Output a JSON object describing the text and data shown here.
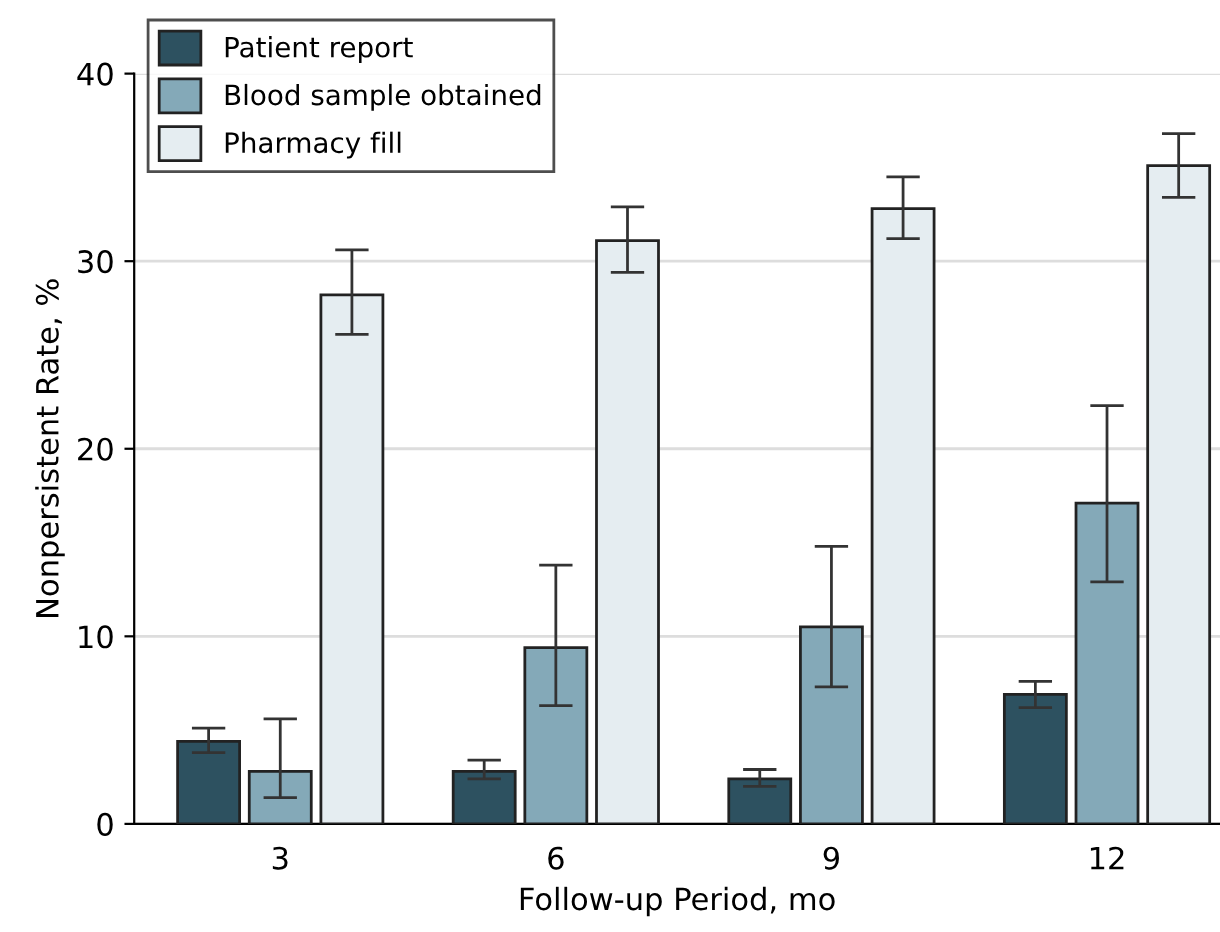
{
  "chart_data": {
    "type": "bar",
    "xlabel": "Follow-up Period, mo",
    "ylabel": "Nonpersistent Rate, %",
    "categories": [
      "3",
      "6",
      "9",
      "12"
    ],
    "series": [
      {
        "name": "Patient report",
        "color": "#2d5160",
        "values": [
          4.4,
          2.8,
          2.4,
          6.9
        ],
        "errors": [
          [
            3.8,
            5.1
          ],
          [
            2.4,
            3.4
          ],
          [
            2.0,
            2.9
          ],
          [
            6.2,
            7.6
          ]
        ]
      },
      {
        "name": "Blood sample obtained",
        "color": "#84a9b8",
        "values": [
          2.8,
          9.4,
          10.5,
          17.1
        ],
        "errors": [
          [
            1.4,
            5.6
          ],
          [
            6.3,
            13.8
          ],
          [
            7.3,
            14.8
          ],
          [
            12.9,
            22.3
          ]
        ]
      },
      {
        "name": "Pharmacy fill",
        "color": "#e5edf1",
        "values": [
          28.2,
          31.1,
          32.8,
          35.1
        ],
        "errors": [
          [
            26.1,
            30.6
          ],
          [
            29.4,
            32.9
          ],
          [
            31.2,
            34.5
          ],
          [
            33.4,
            36.8
          ]
        ]
      }
    ],
    "ylim": [
      0,
      40
    ],
    "yticks": [
      0,
      10,
      20,
      30,
      40
    ],
    "grid": "y",
    "legend": "top left"
  }
}
